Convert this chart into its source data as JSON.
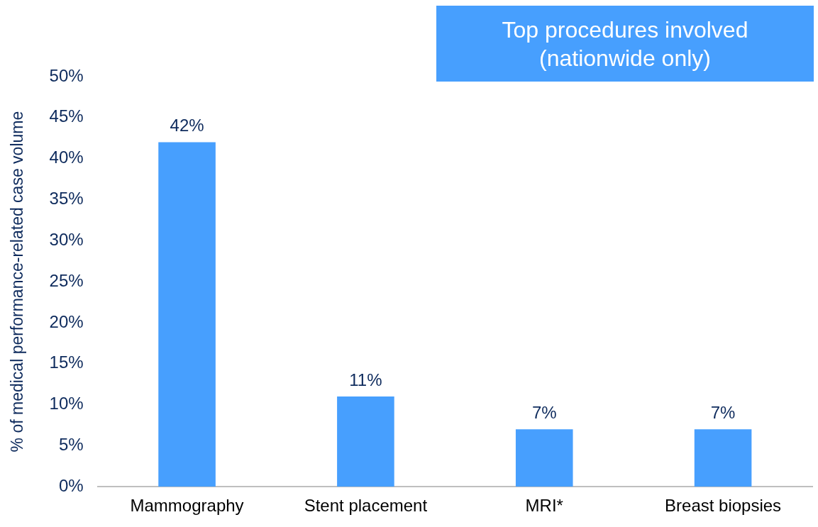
{
  "chart_data": {
    "type": "bar",
    "title": "Top procedures involved\n(nationwide only)",
    "ylabel": "% of medical performance-related case volume",
    "categories": [
      "Mammography",
      "Stent placement",
      "MRI*",
      "Breast biopsies"
    ],
    "values": [
      42,
      11,
      7,
      7
    ],
    "color": "#479ffe",
    "value_labels": [
      "42%",
      "11%",
      "7%",
      "7%"
    ],
    "ylim": [
      0,
      50
    ],
    "yticks": [
      {
        "value": 0,
        "label": "0%"
      },
      {
        "value": 5,
        "label": "5%"
      },
      {
        "value": 10,
        "label": "10%"
      },
      {
        "value": 15,
        "label": "15%"
      },
      {
        "value": 20,
        "label": "20%"
      },
      {
        "value": 25,
        "label": "25%"
      },
      {
        "value": 30,
        "label": "30%"
      },
      {
        "value": 35,
        "label": "35%"
      },
      {
        "value": 40,
        "label": "40%"
      },
      {
        "value": 45,
        "label": "45%"
      },
      {
        "value": 50,
        "label": "50%"
      }
    ],
    "grid": false,
    "legend": false
  }
}
